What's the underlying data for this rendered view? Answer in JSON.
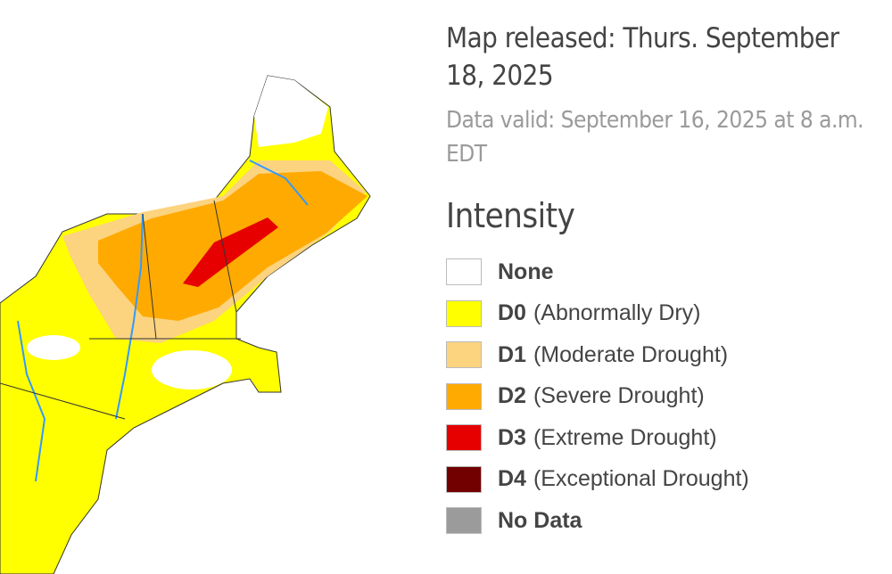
{
  "header": {
    "title": "Map released: Thurs. September 18, 2025",
    "subtitle": "Data valid: September 16, 2025 at 8 a.m. EDT"
  },
  "legend": {
    "heading": "Intensity",
    "items": [
      {
        "label": "None",
        "color": "#ffffff"
      },
      {
        "code": "D0",
        "description": "(Abnormally Dry)",
        "color": "#ffff00"
      },
      {
        "code": "D1",
        "description": "(Moderate Drought)",
        "color": "#fcd37f"
      },
      {
        "code": "D2",
        "description": "(Severe Drought)",
        "color": "#ffaa00"
      },
      {
        "code": "D3",
        "description": "(Extreme Drought)",
        "color": "#e60000"
      },
      {
        "code": "D4",
        "description": "(Exceptional Drought)",
        "color": "#730000"
      },
      {
        "label": "No Data",
        "color": "#9b9b9b"
      }
    ]
  }
}
